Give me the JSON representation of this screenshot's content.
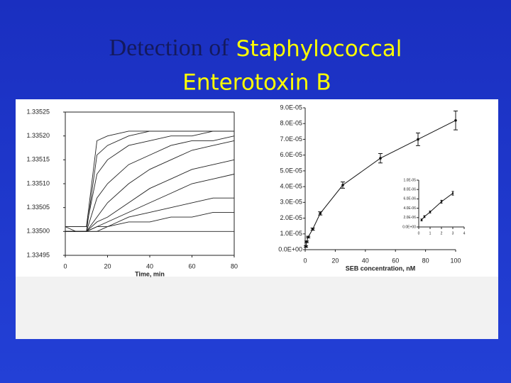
{
  "slide": {
    "title_lead": "Detection of",
    "title_line1_rest": "Staphylococcal",
    "title_line2": "Enterotoxin B"
  },
  "chart_data": [
    {
      "type": "line",
      "xlabel": "Time, min",
      "x": [
        0,
        5,
        10,
        15,
        20,
        30,
        40,
        50,
        60,
        70,
        80
      ],
      "series": [
        {
          "color": "#222",
          "values": [
            1.33501,
            1.33501,
            1.33501,
            1.33519,
            1.3352,
            1.33521,
            1.33521,
            1.33521,
            1.33521,
            1.33521,
            1.33521
          ]
        },
        {
          "color": "#222",
          "values": [
            1.335,
            1.335,
            1.335,
            1.33516,
            1.33518,
            1.3352,
            1.33521,
            1.33521,
            1.33521,
            1.33521,
            1.33521
          ]
        },
        {
          "color": "#222",
          "values": [
            1.33501,
            1.33501,
            1.33501,
            1.33512,
            1.33515,
            1.33518,
            1.33519,
            1.3352,
            1.3352,
            1.33521,
            1.33521
          ]
        },
        {
          "color": "#222",
          "values": [
            1.335,
            1.335,
            1.335,
            1.33507,
            1.3351,
            1.33514,
            1.33516,
            1.33518,
            1.33519,
            1.33519,
            1.3352
          ]
        },
        {
          "color": "#222",
          "values": [
            1.335,
            1.335,
            1.335,
            1.33503,
            1.33506,
            1.3351,
            1.33513,
            1.33515,
            1.33517,
            1.33518,
            1.33519
          ]
        },
        {
          "color": "#222",
          "values": [
            1.33501,
            1.335,
            1.335,
            1.33502,
            1.33503,
            1.33506,
            1.33509,
            1.33511,
            1.33513,
            1.33514,
            1.33515
          ]
        },
        {
          "color": "#222",
          "values": [
            1.335,
            1.335,
            1.335,
            1.33501,
            1.33502,
            1.33504,
            1.33506,
            1.33508,
            1.3351,
            1.33511,
            1.33512
          ]
        },
        {
          "color": "#222",
          "values": [
            1.335,
            1.335,
            1.335,
            1.33501,
            1.33501,
            1.33503,
            1.33504,
            1.33505,
            1.33506,
            1.33507,
            1.33507
          ]
        },
        {
          "color": "#222",
          "values": [
            1.335,
            1.335,
            1.335,
            1.335,
            1.33501,
            1.33502,
            1.33502,
            1.33503,
            1.33503,
            1.33504,
            1.33504
          ]
        },
        {
          "color": "#222",
          "values": [
            1.335,
            1.335,
            1.335,
            1.335,
            1.335,
            1.335,
            1.335,
            1.335,
            1.335,
            1.335,
            1.335
          ]
        }
      ],
      "xlim": [
        0,
        80
      ],
      "xticks": [
        0,
        20,
        40,
        60,
        80
      ],
      "ylim": [
        1.33495,
        1.33525
      ],
      "yticks": [
        {
          "value": 1.33495,
          "label": "1.33495"
        },
        {
          "value": 1.335,
          "label": "1.33500"
        },
        {
          "value": 1.33505,
          "label": "1.33505"
        },
        {
          "value": 1.3351,
          "label": "1.33510"
        },
        {
          "value": 1.33515,
          "label": "1.33515"
        },
        {
          "value": 1.3352,
          "label": "1.33520"
        },
        {
          "value": 1.33525,
          "label": "1.33525"
        }
      ]
    },
    {
      "type": "scatter",
      "xlabel": "SEB concentration, nM",
      "color": "#111",
      "x": [
        0.5,
        1,
        2,
        5,
        10,
        25,
        50,
        75,
        100
      ],
      "values": [
        2e-06,
        5e-06,
        8e-06,
        1.3e-05,
        2.3e-05,
        4.1e-05,
        5.8e-05,
        7e-05,
        8.2e-05
      ],
      "errors": [
        5e-07,
        5e-07,
        5e-07,
        7e-07,
        1e-06,
        2e-06,
        3e-06,
        4e-06,
        6e-06
      ],
      "xlim": [
        0,
        100
      ],
      "xticks": [
        0,
        20,
        40,
        60,
        80,
        100
      ],
      "ylim": [
        0,
        9e-05
      ],
      "yticks": [
        {
          "value": 0,
          "label": "0.0E+00"
        },
        {
          "value": 1e-05,
          "label": "1.0E-05"
        },
        {
          "value": 2e-05,
          "label": "2.0E-05"
        },
        {
          "value": 3e-05,
          "label": "3.0E-05"
        },
        {
          "value": 4e-05,
          "label": "4.0E-05"
        },
        {
          "value": 5e-05,
          "label": "5.0E-05"
        },
        {
          "value": 6e-05,
          "label": "6.0E-05"
        },
        {
          "value": 7e-05,
          "label": "7.0E-05"
        },
        {
          "value": 8e-05,
          "label": "8.0E-05"
        },
        {
          "value": 9e-05,
          "label": "9.0E-05"
        }
      ]
    },
    {
      "type": "scatter",
      "color": "#111",
      "x": [
        0.25,
        0.5,
        1,
        2,
        3
      ],
      "values": [
        1.5e-06,
        2.2e-06,
        3.2e-06,
        5.4e-06,
        7.2e-06
      ],
      "errors": [
        2e-07,
        2e-07,
        2e-07,
        3e-07,
        4e-07
      ],
      "xlim": [
        0,
        4
      ],
      "xticks": [
        0,
        1,
        2,
        3,
        4
      ],
      "ylim": [
        0,
        1e-05
      ],
      "yticks": [
        {
          "value": 0,
          "label": "0.0E+00"
        },
        {
          "value": 2e-06,
          "label": "2.0E-06"
        },
        {
          "value": 4e-06,
          "label": "4.0E-06"
        },
        {
          "value": 6e-06,
          "label": "6.0E-06"
        },
        {
          "value": 8e-06,
          "label": "8.0E-06"
        },
        {
          "value": 1e-05,
          "label": "1.0E-05"
        }
      ]
    }
  ]
}
